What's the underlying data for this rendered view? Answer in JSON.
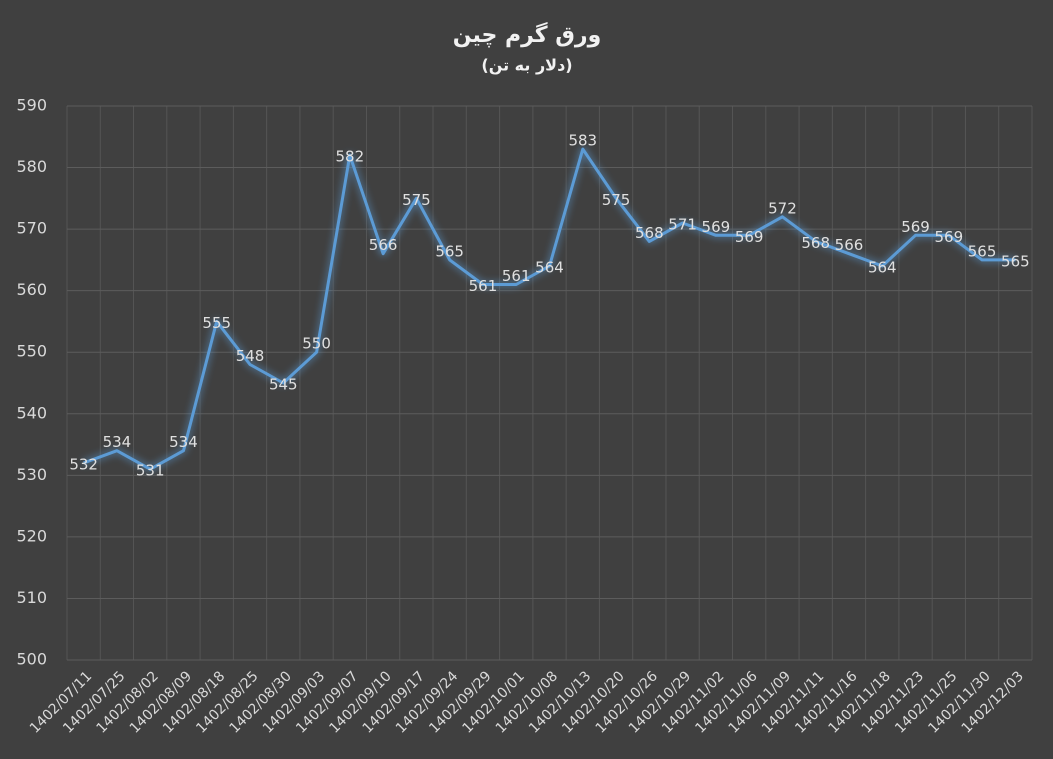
{
  "chart_data": {
    "type": "line",
    "title": "ورق گرم چین",
    "subtitle": "(دلار به تن)",
    "categories": [
      "1402/07/11",
      "1402/07/25",
      "1402/08/02",
      "1402/08/09",
      "1402/08/18",
      "1402/08/25",
      "1402/08/30",
      "1402/09/03",
      "1402/09/07",
      "1402/09/10",
      "1402/09/17",
      "1402/09/24",
      "1402/09/29",
      "1402/10/01",
      "1402/10/08",
      "1402/10/13",
      "1402/10/20",
      "1402/10/26",
      "1402/10/29",
      "1402/11/02",
      "1402/11/06",
      "1402/11/09",
      "1402/11/11",
      "1402/11/16",
      "1402/11/18",
      "1402/11/23",
      "1402/11/25",
      "1402/11/30",
      "1402/12/03"
    ],
    "values": [
      532,
      534,
      531,
      534,
      555,
      548,
      545,
      550,
      582,
      566,
      575,
      565,
      561,
      561,
      564,
      583,
      575,
      568,
      571,
      569,
      569,
      572,
      568,
      566,
      564,
      569,
      569,
      565,
      565
    ],
    "color": "#5b9bd5",
    "ylim": [
      500,
      590
    ],
    "yticks": [
      500,
      510,
      520,
      530,
      540,
      550,
      560,
      570,
      580,
      590
    ],
    "grid": true
  }
}
